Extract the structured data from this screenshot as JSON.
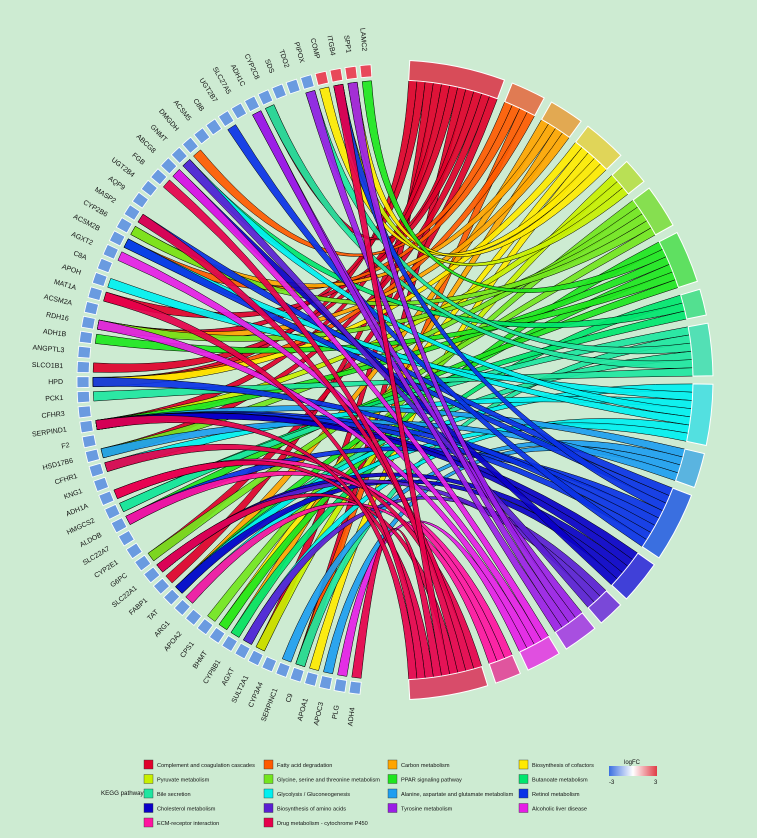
{
  "genes": [
    "ADH4",
    "PLG",
    "APOC3",
    "APOA1",
    "C9",
    "SERPINC1",
    "CYP3A4",
    "SULT2A1",
    "AGXT",
    "CYP8B1",
    "BHMT",
    "CPS1",
    "APOA2",
    "ARG1",
    "TAT",
    "FABP1",
    "SLC22A1",
    "G6PC",
    "CYP2E1",
    "SLC22A7",
    "ALDOB",
    "HMGCS2",
    "ADH1A",
    "KNG1",
    "CFHR1",
    "HSD17B6",
    "F2",
    "SERPIND1",
    "CFHR3",
    "PCK1",
    "HPD",
    "SLCO1B1",
    "ANGPTL3",
    "ADH1B",
    "RDH16",
    "ACSM2A",
    "MAT1A",
    "APOH",
    "C8A",
    "AGXT2",
    "ACSM2B",
    "CYP2B6",
    "MASP2",
    "AQP9",
    "UGT2B4",
    "FGB",
    "ABCG8",
    "GNMT",
    "DMGDH",
    "ACSM5",
    "C8B",
    "UGT2B7",
    "SLC27A5",
    "ADH1C",
    "CYP2C8",
    "SDS",
    "TDO2",
    "PIPOX",
    "COMP",
    "ITGB4",
    "SPP1",
    "LAMC2"
  ],
  "gene_logfc_colors": {
    "COMP": "#e8495a",
    "ITGB4": "#e8495a",
    "SPP1": "#e8495a",
    "LAMC2": "#e8495a",
    "default": "#6a9be0"
  },
  "pathways": [
    {
      "name": "Complement and coagulation cascades",
      "color": "#e0002a"
    },
    {
      "name": "Fatty acid degradation",
      "color": "#ff5a00"
    },
    {
      "name": "Carbon metabolism",
      "color": "#ffa500"
    },
    {
      "name": "Biosynthesis of cofactors",
      "color": "#ffea00"
    },
    {
      "name": "Pyruvate metabolism",
      "color": "#c8f000"
    },
    {
      "name": "Glycine, serine and threonine metabolism",
      "color": "#73e61e"
    },
    {
      "name": "PPAR signaling pathway",
      "color": "#1ee61e"
    },
    {
      "name": "Butanoate metabolism",
      "color": "#00e66e"
    },
    {
      "name": "Bile secretion",
      "color": "#1ee6a0"
    },
    {
      "name": "Glycolysis / Gluconeogenesis",
      "color": "#00f0f0"
    },
    {
      "name": "Alanine, aspartate and glutamate metabolism",
      "color": "#1e9ef0"
    },
    {
      "name": "Retinol metabolism",
      "color": "#0a32e6"
    },
    {
      "name": "Cholesterol metabolism",
      "color": "#0a00c8"
    },
    {
      "name": "Biosynthesis of amino acids",
      "color": "#5a1ed2"
    },
    {
      "name": "Tyrosine metabolism",
      "color": "#9b1ee6"
    },
    {
      "name": "Alcoholic liver disease",
      "color": "#e61ee6"
    },
    {
      "name": "ECM-receptor interaction",
      "color": "#ff14a0"
    },
    {
      "name": "Drug metabolism - cytochrome P450",
      "color": "#e6004b"
    }
  ],
  "pathway_block_colors": [
    "#d84c59",
    "#e07b53",
    "#e2a952",
    "#e0d559",
    "#b9e055",
    "#86df50",
    "#5fe061",
    "#53e090",
    "#53e0b5",
    "#53e0e0",
    "#5ab4e0",
    "#3a6fe0",
    "#4040d8",
    "#7a48d8",
    "#a84fe0",
    "#e04fe0",
    "#e0559e",
    "#d84c6a"
  ],
  "legend": {
    "title": "KEGG pathway",
    "colorbar_title": "logFC",
    "colorbar_min": "-3",
    "colorbar_max": "3",
    "colorbar_low_color": "#3b6fe0",
    "colorbar_high_color": "#e03b45"
  }
}
